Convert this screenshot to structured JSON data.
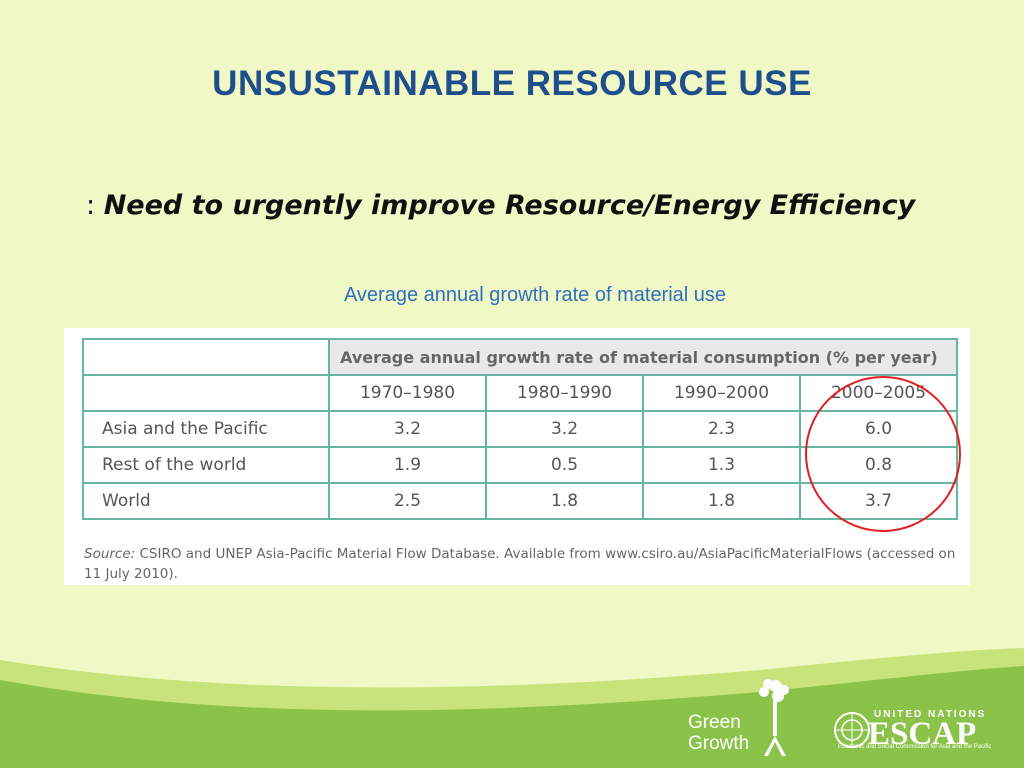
{
  "slide": {
    "title": "UNSUSTAINABLE RESOURCE USE",
    "subtitle_prefix": ": ",
    "subtitle_emphasis": "Need to urgently improve Resource/Energy Efficiency",
    "caption": "Average annual growth rate of material use"
  },
  "table": {
    "group_header": "Average annual growth rate of material consumption (% per year)",
    "columns": [
      "1970–1980",
      "1980–1990",
      "1990–2000",
      "2000–2005"
    ],
    "rows": [
      {
        "label": "Asia and the Pacific",
        "values": [
          "3.2",
          "3.2",
          "2.3",
          "6.0"
        ]
      },
      {
        "label": "Rest of the world",
        "values": [
          "1.9",
          "0.5",
          "1.3",
          "0.8"
        ]
      },
      {
        "label": "World",
        "values": [
          "2.5",
          "1.8",
          "1.8",
          "3.7"
        ]
      }
    ],
    "source_label": "Source:",
    "source_text": " CSIRO and UNEP Asia-Pacific Material Flow Database. Available from www.csiro.au/AsiaPacificMaterialFlows (accessed on 11 July 2010)."
  },
  "logos": {
    "green_growth_line1": "Green",
    "green_growth_line2": "Growth",
    "escap_small": "UNITED NATIONS",
    "escap_big": "ESCAP",
    "escap_desc": "Economic and Social Commission for Asia and the Pacific"
  },
  "colors": {
    "background": "#f0f8c6",
    "title": "#1f4e8c",
    "caption": "#2e6fc0",
    "table_border": "#66b5a3",
    "highlight": "#e02020",
    "wave": "#8bc34a"
  }
}
